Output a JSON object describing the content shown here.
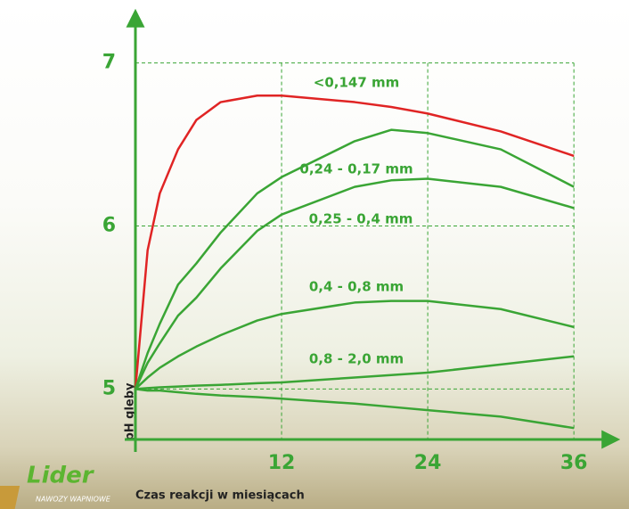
{
  "chart_data": {
    "type": "line",
    "y_label": "pH gleby",
    "x_label": "Czas reakcji w miesiącach",
    "x": [
      0,
      1,
      2,
      3.5,
      5,
      7,
      10,
      12,
      18,
      21,
      24,
      30,
      36
    ],
    "series": [
      {
        "name": "<0,147 mm",
        "color": "#e02424",
        "values": [
          5,
          5.85,
          6.2,
          6.47,
          6.65,
          6.76,
          6.8,
          6.8,
          6.76,
          6.73,
          6.69,
          6.58,
          6.43
        ]
      },
      {
        "name": "0,24 - 0,17 mm",
        "color": "#3aa535",
        "values": [
          5,
          5.22,
          5.4,
          5.64,
          5.77,
          5.96,
          6.2,
          6.3,
          6.52,
          6.59,
          6.57,
          6.47,
          6.24
        ]
      },
      {
        "name": "0,25 - 0,4 mm",
        "color": "#3aa535",
        "values": [
          5,
          5.16,
          5.28,
          5.45,
          5.56,
          5.74,
          5.97,
          6.07,
          6.24,
          6.28,
          6.29,
          6.24,
          6.11
        ]
      },
      {
        "name": "0,4 - 0,8 mm",
        "color": "#3aa535",
        "values": [
          5,
          5.07,
          5.13,
          5.2,
          5.26,
          5.33,
          5.42,
          5.46,
          5.53,
          5.54,
          5.54,
          5.49,
          5.38
        ]
      },
      {
        "name": "0,8 - 2,0 mm",
        "color": "#3aa535",
        "values": [
          5,
          5.005,
          5.01,
          5.015,
          5.02,
          5.025,
          5.035,
          5.04,
          5.07,
          5.085,
          5.1,
          5.15,
          5.2
        ]
      },
      {
        "color": "#3aa535",
        "values": [
          5,
          4.99,
          4.99,
          4.98,
          4.97,
          4.96,
          4.95,
          4.94,
          4.91,
          4.89,
          4.87,
          4.83,
          4.76
        ]
      }
    ],
    "xlim": [
      0,
      39.5
    ],
    "ylim": [
      4.69,
      7.31
    ],
    "xticks": [
      12,
      24,
      36
    ],
    "yticks": [
      5,
      6,
      7
    ],
    "grid": true
  },
  "logo": {
    "name": "Lider",
    "tagline": "NAWOZY WAPNIOWE"
  }
}
